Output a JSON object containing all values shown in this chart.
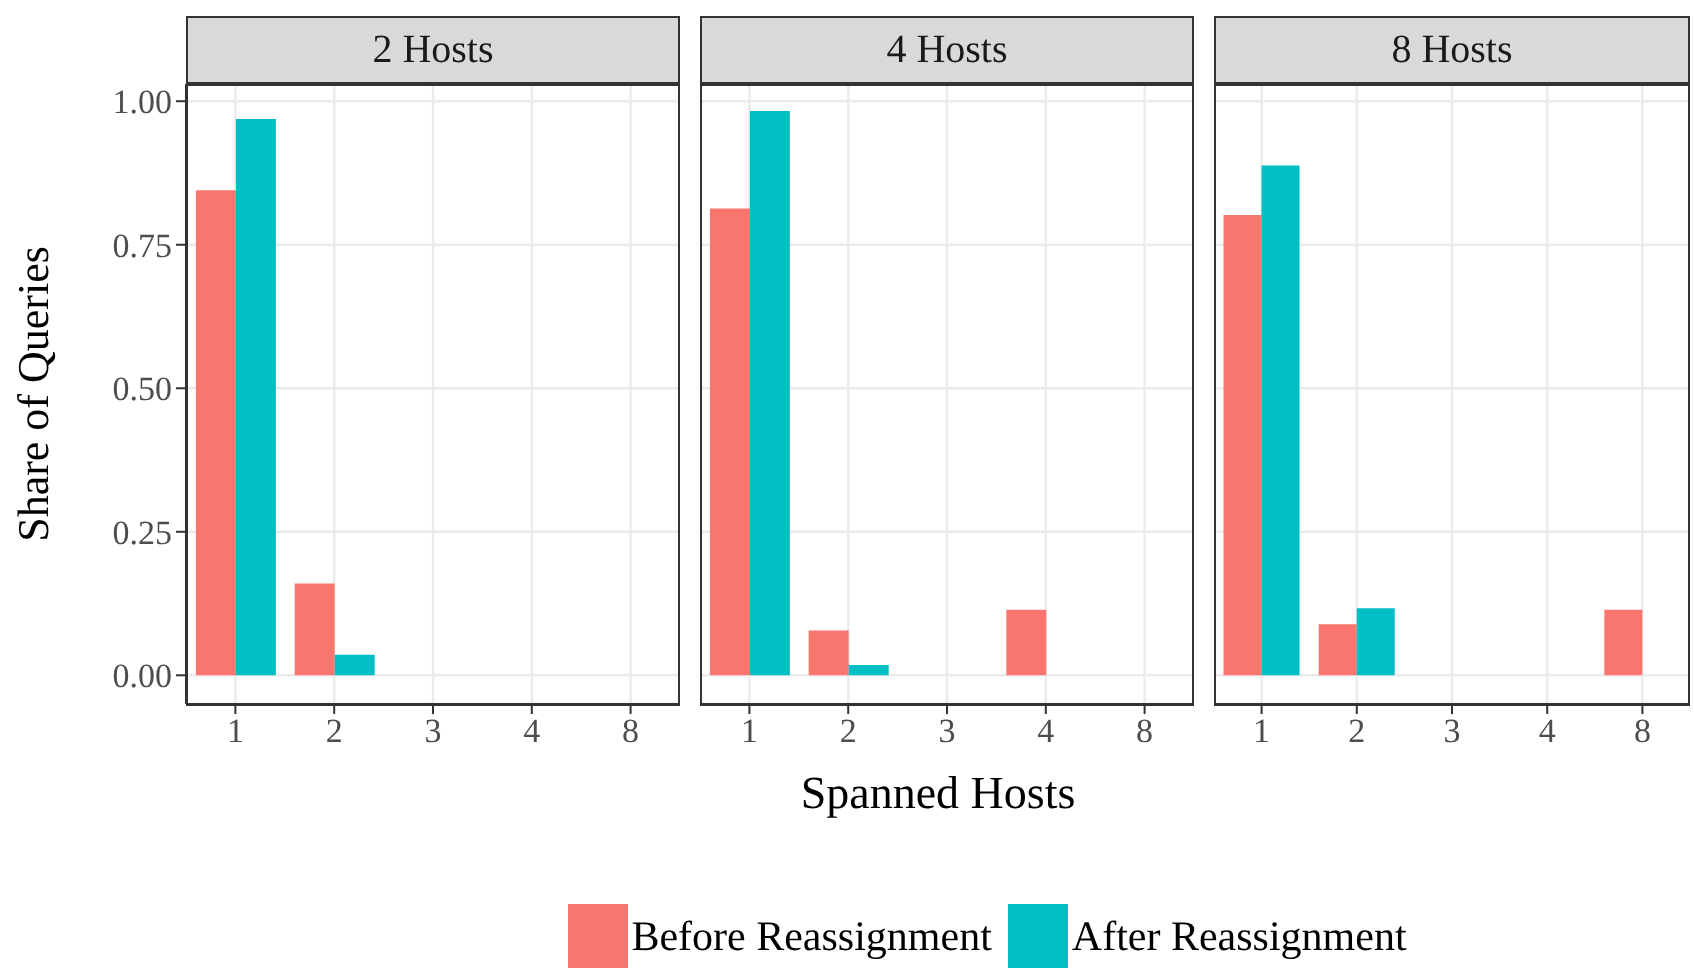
{
  "chart_data": [
    {
      "type": "bar",
      "title": "2 Hosts",
      "ylabel": "Share of Queries",
      "categories": [
        "1",
        "2",
        "3",
        "4",
        "8"
      ],
      "series": [
        {
          "name": "Before Reassignment",
          "color": "#f8766d",
          "values": [
            0.845,
            0.16,
            0,
            0,
            0
          ]
        },
        {
          "name": "After Reassignment",
          "color": "#00bfc4",
          "values": [
            0.969,
            0.036,
            0,
            0,
            0
          ]
        }
      ],
      "ylim": [
        -0.05,
        1.03
      ],
      "yticks": [
        {
          "value": 0,
          "label": "0.00"
        },
        {
          "value": 0.25,
          "label": "0.25"
        },
        {
          "value": 0.5,
          "label": "0.50"
        },
        {
          "value": 0.75,
          "label": "0.75"
        },
        {
          "value": 1,
          "label": "1.00"
        }
      ],
      "grid": true,
      "legend": "bottom"
    },
    {
      "type": "bar",
      "title": "4 Hosts",
      "xlabel": "Spanned Hosts",
      "categories": [
        "1",
        "2",
        "3",
        "4",
        "8"
      ],
      "series": [
        {
          "color": "#f8766d",
          "values": [
            0.813,
            0.078,
            0,
            0.114,
            0
          ]
        },
        {
          "color": "#00bfc4",
          "values": [
            0.983,
            0.018,
            0,
            0,
            0
          ]
        }
      ],
      "ylim": [
        -0.05,
        1.03
      ],
      "yticks": [
        0,
        0.25,
        0.5,
        0.75,
        1
      ],
      "grid": true,
      "tick_labels": "x"
    },
    {
      "type": "bar",
      "title": "8 Hosts",
      "categories": [
        "1",
        "2",
        "3",
        "4",
        "8"
      ],
      "series": [
        {
          "color": "#f8766d",
          "values": [
            0.802,
            0.089,
            0,
            0,
            0.114
          ]
        },
        {
          "color": "#00bfc4",
          "values": [
            0.888,
            0.117,
            0,
            0,
            0
          ]
        }
      ],
      "ylim": [
        -0.05,
        1.03
      ],
      "yticks": [
        0,
        0.25,
        0.5,
        0.75,
        1
      ],
      "grid": true,
      "tick_labels": "x"
    }
  ]
}
